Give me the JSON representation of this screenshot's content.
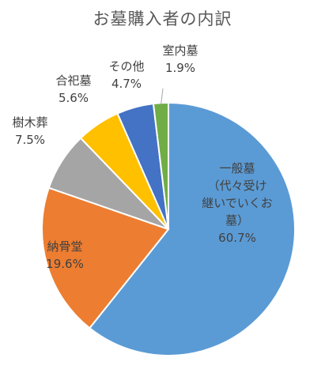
{
  "chart_data": {
    "type": "pie",
    "title": "お墓購入者の内訳",
    "slices": [
      {
        "label": [
          "一般墓",
          "（代々受け",
          "継いでいくお",
          "墓）"
        ],
        "value_label": "60.7%",
        "value": 60.7,
        "color": "#5B9BD5"
      },
      {
        "label": [
          "納骨堂"
        ],
        "value_label": "19.6%",
        "value": 19.6,
        "color": "#ED7D31"
      },
      {
        "label": [
          "樹木葬"
        ],
        "value_label": "7.5%",
        "value": 7.5,
        "color": "#A5A5A5"
      },
      {
        "label": [
          "合祀墓"
        ],
        "value_label": "5.6%",
        "value": 5.6,
        "color": "#FFC000"
      },
      {
        "label": [
          "その他"
        ],
        "value_label": "4.7%",
        "value": 4.7,
        "color": "#4472C4"
      },
      {
        "label": [
          "室内墓"
        ],
        "value_label": "1.9%",
        "value": 1.9,
        "color": "#70AD47"
      }
    ]
  }
}
